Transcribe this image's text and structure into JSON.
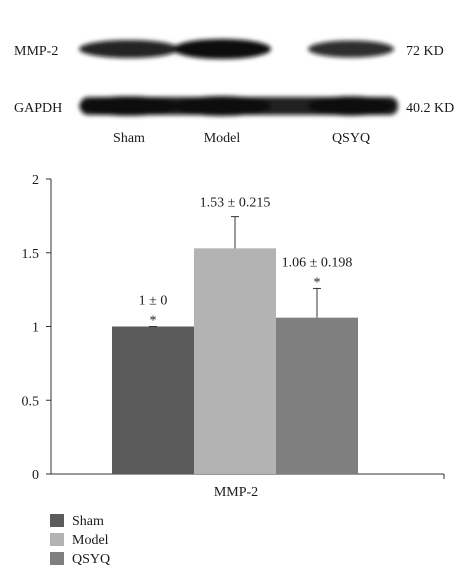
{
  "blot": {
    "rows": [
      {
        "label": "MMP-2",
        "size": "72 KD",
        "intensity": [
          0.8,
          1.0,
          0.7
        ]
      },
      {
        "label": "GAPDH",
        "size": "40.2 KD",
        "intensity": [
          0.95,
          1.0,
          0.95
        ]
      }
    ],
    "lanes": [
      "Sham",
      "Model",
      "QSYQ"
    ]
  },
  "chart_data": {
    "type": "bar",
    "categories": [
      "MMP-2"
    ],
    "series": [
      {
        "name": "Sham",
        "value": 1.0,
        "error": 0.0,
        "label": "1 ± 0",
        "significance": "*",
        "color": "#5b5b5b"
      },
      {
        "name": "Model",
        "value": 1.53,
        "error": 0.215,
        "label": "1.53 ± 0.215",
        "significance": "",
        "color": "#b3b3b3"
      },
      {
        "name": "QSYQ",
        "value": 1.06,
        "error": 0.198,
        "label": "1.06 ± 0.198",
        "significance": "*",
        "color": "#7f7f7f"
      }
    ],
    "ylim": [
      0,
      2
    ],
    "yticks": [
      "0",
      "0.5",
      "1",
      "1.5",
      "2"
    ],
    "legend": "bottom-left",
    "grid": false,
    "xlabel": "",
    "ylabel": "",
    "title": ""
  }
}
